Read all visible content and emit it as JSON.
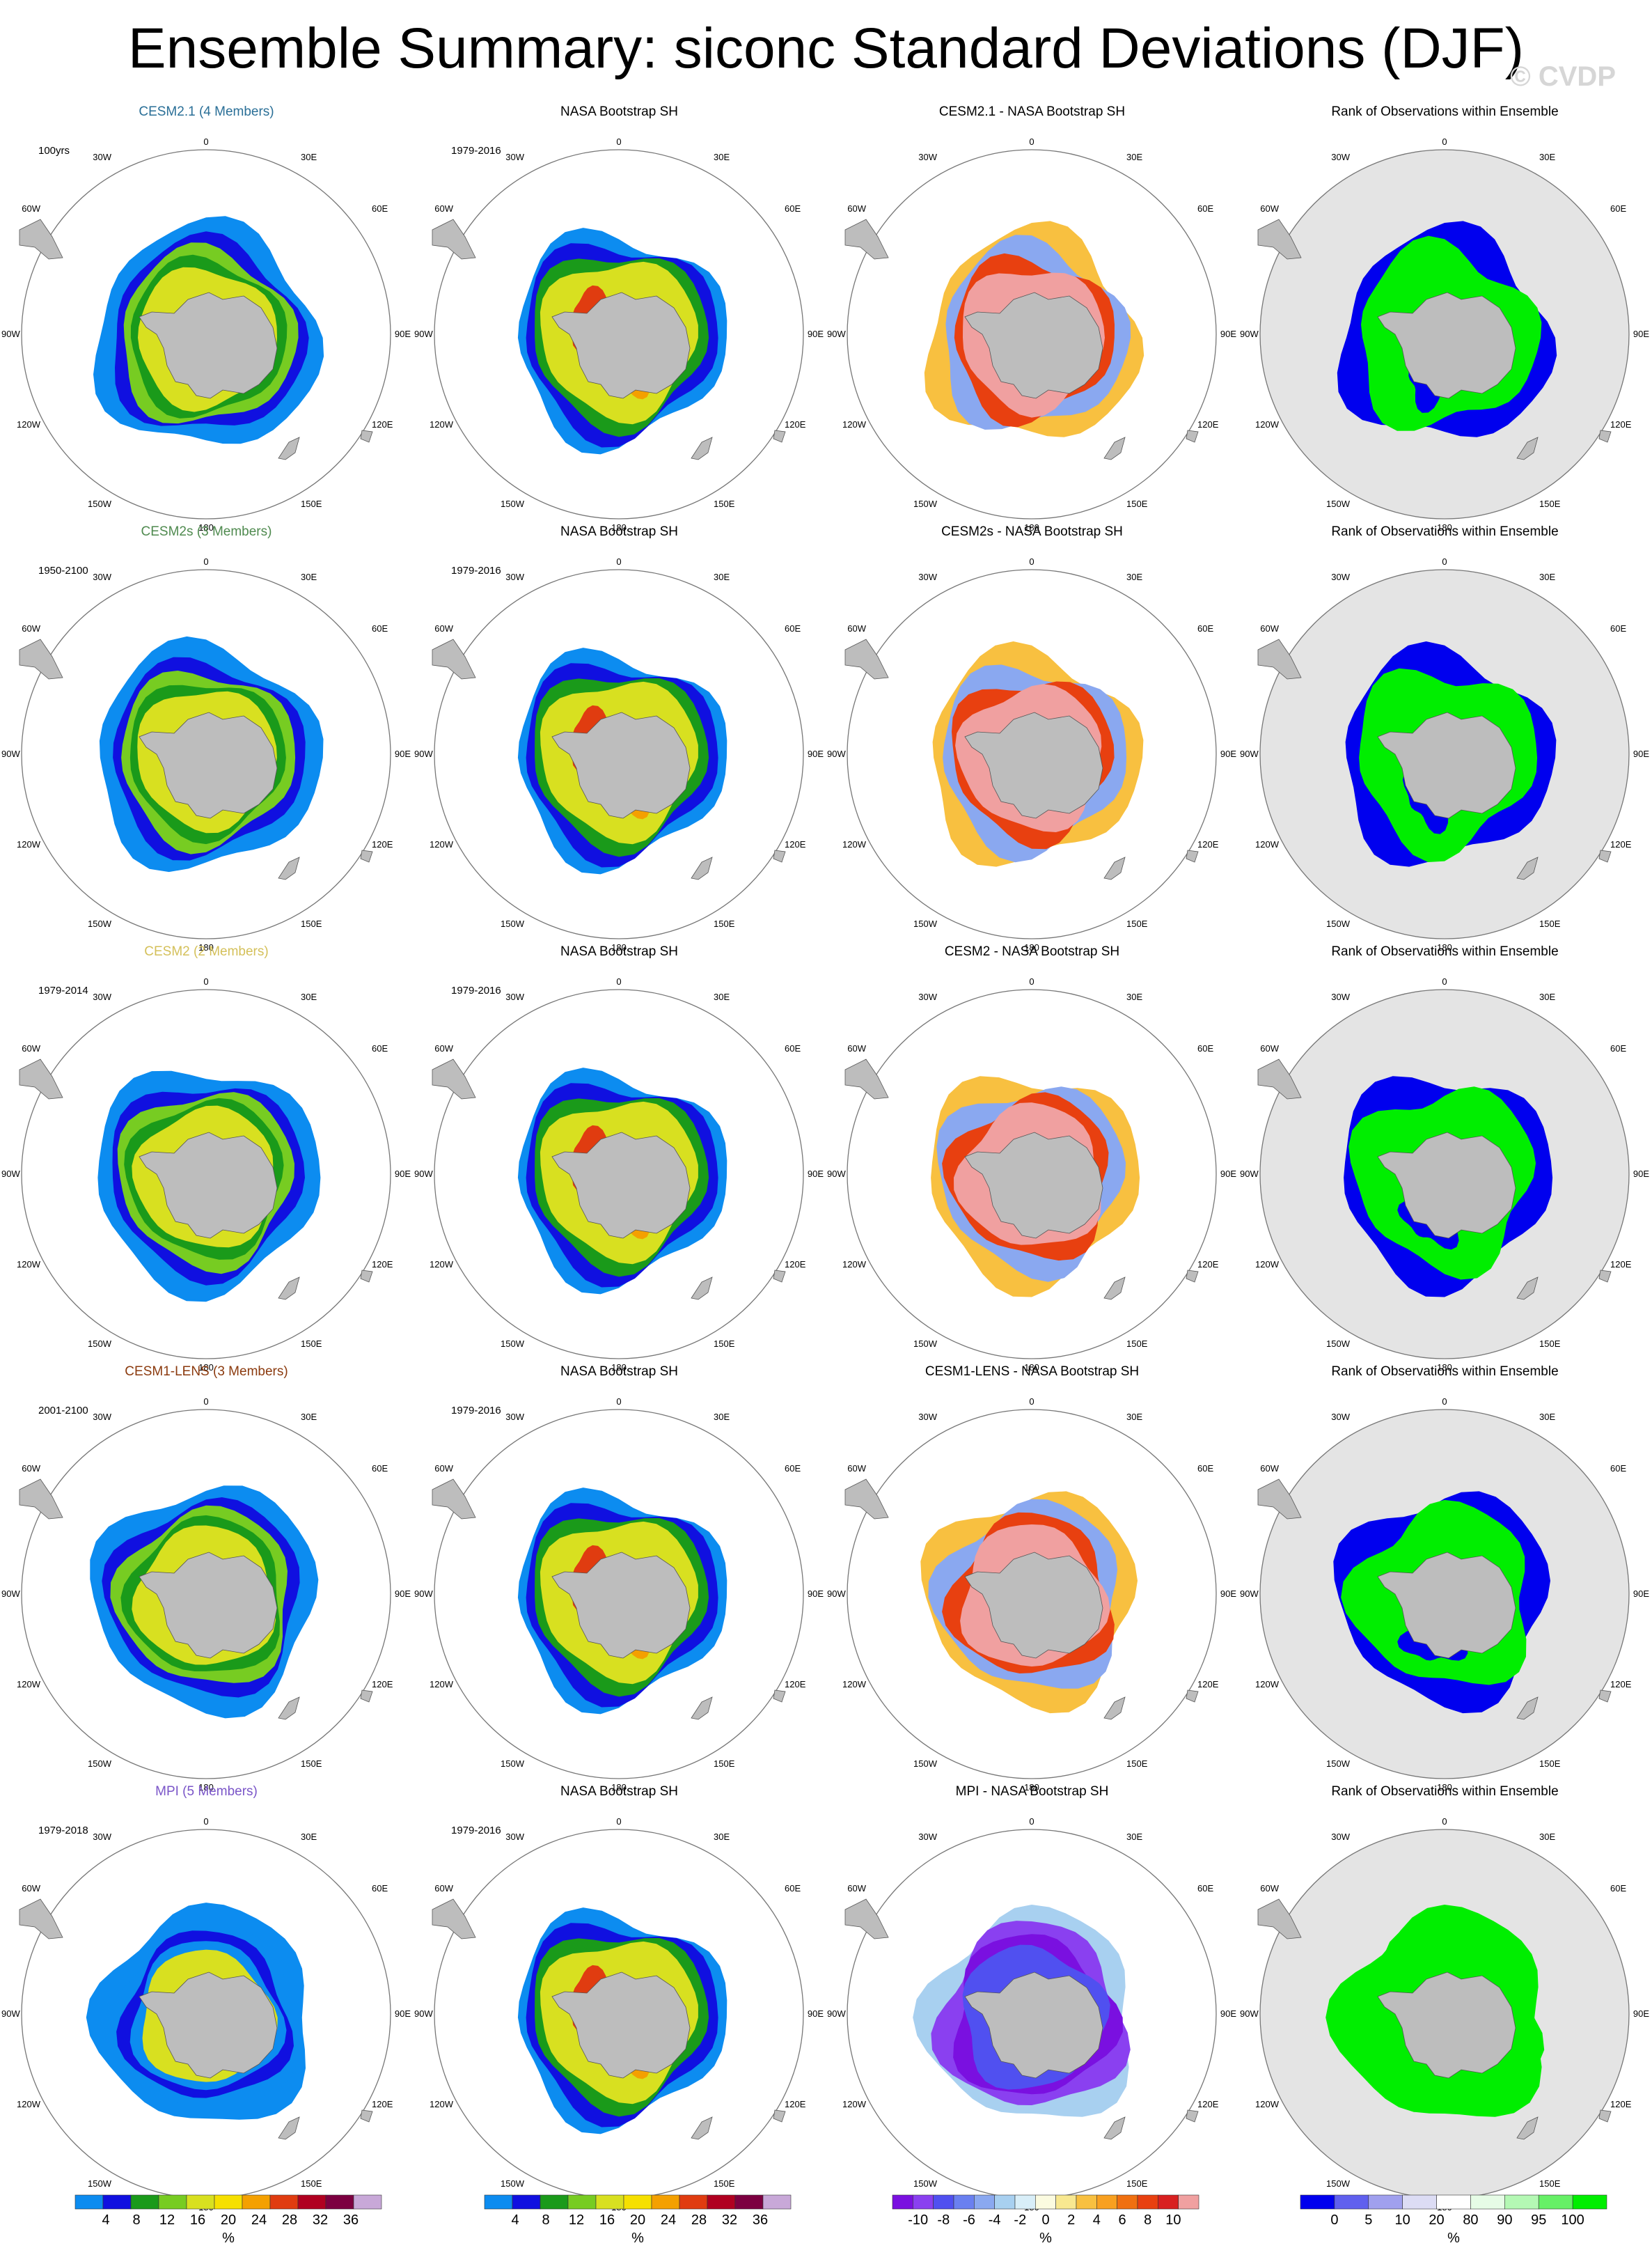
{
  "title": "Ensemble Summary: siconc Standard Deviations (DJF)",
  "watermark": "© CVDP",
  "lon_labels": {
    "top": "0",
    "bottom": "180",
    "left": "90W",
    "right": "90E",
    "ul1": "30W",
    "ul2": "60W",
    "ur1": "30E",
    "ur2": "60E",
    "ll1": "120W",
    "ll2": "150W",
    "lr1": "120E",
    "lr2": "150E"
  },
  "colors": {
    "land": "#bdbdbd",
    "rank_bg": "#e4e4e4",
    "outline": "#777777"
  },
  "rows": [
    {
      "model": "CESM2.1 (4 Members)",
      "model_color": "#2a6f97",
      "period": "100yrs",
      "obs_period": "1979-2016",
      "diff_title": "CESM2.1 - NASA Bootstrap SH",
      "rank_title": "Rank of Observations within Ensemble",
      "obs_title": "NASA Bootstrap SH"
    },
    {
      "model": "CESM2s (3 Members)",
      "model_color": "#4f8a4f",
      "period": "1950-2100",
      "obs_period": "1979-2016",
      "diff_title": "CESM2s - NASA Bootstrap SH",
      "rank_title": "Rank of Observations within Ensemble",
      "obs_title": "NASA Bootstrap SH"
    },
    {
      "model": "CESM2 (2 Members)",
      "model_color": "#d4c05a",
      "period": "1979-2014",
      "obs_period": "1979-2016",
      "diff_title": "CESM2 - NASA Bootstrap SH",
      "rank_title": "Rank of Observations within Ensemble",
      "obs_title": "NASA Bootstrap SH"
    },
    {
      "model": "CESM1-LENS (3 Members)",
      "model_color": "#8b3a0e",
      "period": "2001-2100",
      "obs_period": "1979-2016",
      "diff_title": "CESM1-LENS - NASA Bootstrap SH",
      "rank_title": "Rank of Observations within Ensemble",
      "obs_title": "NASA Bootstrap SH"
    },
    {
      "model": "MPI (5 Members)",
      "model_color": "#7a55c8",
      "period": "1979-2018",
      "obs_period": "1979-2016",
      "diff_title": "MPI - NASA Bootstrap SH",
      "rank_title": "Rank of Observations within Ensemble",
      "obs_title": "NASA Bootstrap SH"
    }
  ],
  "colorbars": [
    {
      "labels": [
        "4",
        "8",
        "12",
        "16",
        "20",
        "24",
        "28",
        "32",
        "36"
      ],
      "unit": "%",
      "colors": [
        "#0c8cf0",
        "#1010e0",
        "#1a9a1a",
        "#77cc22",
        "#d8e020",
        "#f6e000",
        "#f4a000",
        "#e03c10",
        "#b00020",
        "#7c0040",
        "#c8a8d8"
      ]
    },
    {
      "labels": [
        "4",
        "8",
        "12",
        "16",
        "20",
        "24",
        "28",
        "32",
        "36"
      ],
      "unit": "%",
      "colors": [
        "#0c8cf0",
        "#1010e0",
        "#1a9a1a",
        "#77cc22",
        "#d8e020",
        "#f6e000",
        "#f4a000",
        "#e03c10",
        "#b00020",
        "#7c0040",
        "#c8a8d8"
      ]
    },
    {
      "labels": [
        "-10",
        "-8",
        "-6",
        "-4",
        "-2",
        "0",
        "2",
        "4",
        "6",
        "8",
        "10"
      ],
      "unit": "%",
      "colors": [
        "#7a10e0",
        "#8a40f0",
        "#5050f0",
        "#6a80f0",
        "#8aa8f0",
        "#a8d0f0",
        "#d8eef8",
        "#fbfbe0",
        "#f8e890",
        "#f8c040",
        "#f8a020",
        "#f07010",
        "#e84010",
        "#d82020",
        "#f0a0a0"
      ]
    },
    {
      "labels": [
        "0",
        "5",
        "10",
        "20",
        "80",
        "90",
        "95",
        "100"
      ],
      "unit": "%",
      "colors": [
        "#0000ee",
        "#6060ee",
        "#a0a0ee",
        "#dcdcf4",
        "#ffffff",
        "#e6fce6",
        "#b4f8b4",
        "#66f066",
        "#00ee00"
      ]
    }
  ],
  "panel_types": [
    "model",
    "obs",
    "diff",
    "rank"
  ]
}
